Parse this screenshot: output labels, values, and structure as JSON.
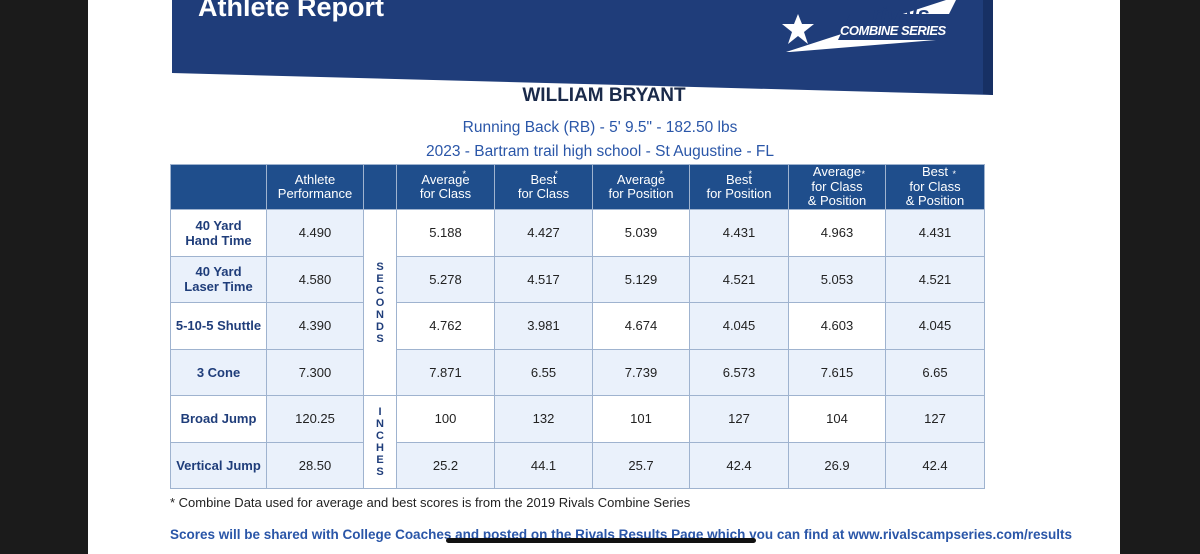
{
  "banner": {
    "title": "Athlete Report",
    "logo_word": "rivals",
    "logo_sub": "COMBINE SERIES",
    "colors": {
      "navy": "#1f3d7a",
      "blue": "#2a56a8"
    }
  },
  "athlete": {
    "name": "WILLIAM BRYANT",
    "line1": "Running Back (RB) -  5' 9.5\" - 182.50 lbs",
    "line2": "2023 - Bartram trail high school - St Augustine - FL"
  },
  "table": {
    "headers": [
      "",
      "Athlete Performance",
      "",
      "Average for Class",
      "Best for Class",
      "Average for Position",
      "Best for Position",
      "Average for Class & Position",
      "Best for Class & Position"
    ],
    "units": {
      "seconds": "SECONDS",
      "inches": "INCHES"
    },
    "rows": [
      {
        "label": "40 Yard Hand Time",
        "values": [
          "4.490",
          "5.188",
          "4.427",
          "5.039",
          "4.431",
          "4.963",
          "4.431"
        ]
      },
      {
        "label": "40 Yard Laser Time",
        "values": [
          "4.580",
          "5.278",
          "4.517",
          "5.129",
          "4.521",
          "5.053",
          "4.521"
        ]
      },
      {
        "label": "5-10-5 Shuttle",
        "values": [
          "4.390",
          "4.762",
          "3.981",
          "4.674",
          "4.045",
          "4.603",
          "4.045"
        ]
      },
      {
        "label": "3 Cone",
        "values": [
          "7.300",
          "7.871",
          "6.55",
          "7.739",
          "6.573",
          "7.615",
          "6.65"
        ]
      },
      {
        "label": "Broad Jump",
        "values": [
          "120.25",
          "100",
          "132",
          "101",
          "127",
          "104",
          "127"
        ]
      },
      {
        "label": "Vertical Jump",
        "values": [
          "28.50",
          "25.2",
          "44.1",
          "25.7",
          "42.4",
          "26.9",
          "42.4"
        ]
      }
    ]
  },
  "footer": {
    "note": "* Combine Data used for average and best scores is from the 2019 Rivals Combine Series",
    "scores_line": "Scores will be shared with College Coaches and posted on the Rivals Results Page which you can find at www.rivalscampseries.com/results"
  }
}
